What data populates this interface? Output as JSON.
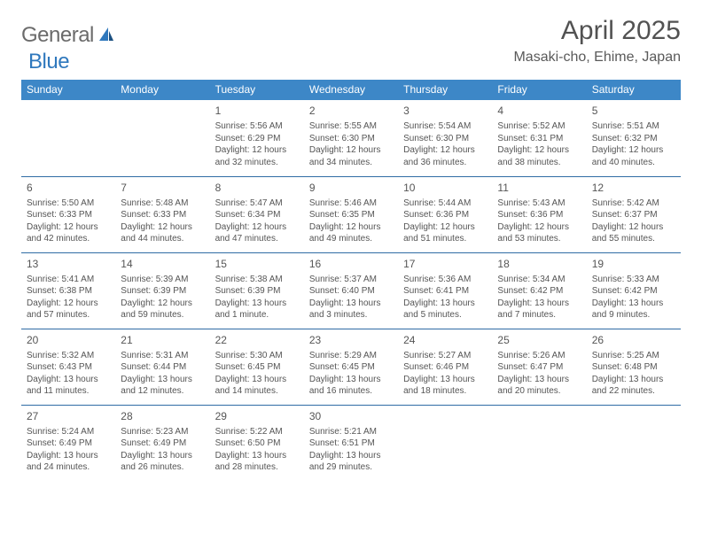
{
  "brand": {
    "word1": "General",
    "word2": "Blue"
  },
  "title": "April 2025",
  "location": "Masaki-cho, Ehime, Japan",
  "header_bg": "#3d87c7",
  "row_border": "#2f6ca5",
  "columns": [
    "Sunday",
    "Monday",
    "Tuesday",
    "Wednesday",
    "Thursday",
    "Friday",
    "Saturday"
  ],
  "weeks": [
    [
      null,
      null,
      {
        "n": "1",
        "sr": "5:56 AM",
        "ss": "6:29 PM",
        "dl": "12 hours and 32 minutes."
      },
      {
        "n": "2",
        "sr": "5:55 AM",
        "ss": "6:30 PM",
        "dl": "12 hours and 34 minutes."
      },
      {
        "n": "3",
        "sr": "5:54 AM",
        "ss": "6:30 PM",
        "dl": "12 hours and 36 minutes."
      },
      {
        "n": "4",
        "sr": "5:52 AM",
        "ss": "6:31 PM",
        "dl": "12 hours and 38 minutes."
      },
      {
        "n": "5",
        "sr": "5:51 AM",
        "ss": "6:32 PM",
        "dl": "12 hours and 40 minutes."
      }
    ],
    [
      {
        "n": "6",
        "sr": "5:50 AM",
        "ss": "6:33 PM",
        "dl": "12 hours and 42 minutes."
      },
      {
        "n": "7",
        "sr": "5:48 AM",
        "ss": "6:33 PM",
        "dl": "12 hours and 44 minutes."
      },
      {
        "n": "8",
        "sr": "5:47 AM",
        "ss": "6:34 PM",
        "dl": "12 hours and 47 minutes."
      },
      {
        "n": "9",
        "sr": "5:46 AM",
        "ss": "6:35 PM",
        "dl": "12 hours and 49 minutes."
      },
      {
        "n": "10",
        "sr": "5:44 AM",
        "ss": "6:36 PM",
        "dl": "12 hours and 51 minutes."
      },
      {
        "n": "11",
        "sr": "5:43 AM",
        "ss": "6:36 PM",
        "dl": "12 hours and 53 minutes."
      },
      {
        "n": "12",
        "sr": "5:42 AM",
        "ss": "6:37 PM",
        "dl": "12 hours and 55 minutes."
      }
    ],
    [
      {
        "n": "13",
        "sr": "5:41 AM",
        "ss": "6:38 PM",
        "dl": "12 hours and 57 minutes."
      },
      {
        "n": "14",
        "sr": "5:39 AM",
        "ss": "6:39 PM",
        "dl": "12 hours and 59 minutes."
      },
      {
        "n": "15",
        "sr": "5:38 AM",
        "ss": "6:39 PM",
        "dl": "13 hours and 1 minute."
      },
      {
        "n": "16",
        "sr": "5:37 AM",
        "ss": "6:40 PM",
        "dl": "13 hours and 3 minutes."
      },
      {
        "n": "17",
        "sr": "5:36 AM",
        "ss": "6:41 PM",
        "dl": "13 hours and 5 minutes."
      },
      {
        "n": "18",
        "sr": "5:34 AM",
        "ss": "6:42 PM",
        "dl": "13 hours and 7 minutes."
      },
      {
        "n": "19",
        "sr": "5:33 AM",
        "ss": "6:42 PM",
        "dl": "13 hours and 9 minutes."
      }
    ],
    [
      {
        "n": "20",
        "sr": "5:32 AM",
        "ss": "6:43 PM",
        "dl": "13 hours and 11 minutes."
      },
      {
        "n": "21",
        "sr": "5:31 AM",
        "ss": "6:44 PM",
        "dl": "13 hours and 12 minutes."
      },
      {
        "n": "22",
        "sr": "5:30 AM",
        "ss": "6:45 PM",
        "dl": "13 hours and 14 minutes."
      },
      {
        "n": "23",
        "sr": "5:29 AM",
        "ss": "6:45 PM",
        "dl": "13 hours and 16 minutes."
      },
      {
        "n": "24",
        "sr": "5:27 AM",
        "ss": "6:46 PM",
        "dl": "13 hours and 18 minutes."
      },
      {
        "n": "25",
        "sr": "5:26 AM",
        "ss": "6:47 PM",
        "dl": "13 hours and 20 minutes."
      },
      {
        "n": "26",
        "sr": "5:25 AM",
        "ss": "6:48 PM",
        "dl": "13 hours and 22 minutes."
      }
    ],
    [
      {
        "n": "27",
        "sr": "5:24 AM",
        "ss": "6:49 PM",
        "dl": "13 hours and 24 minutes."
      },
      {
        "n": "28",
        "sr": "5:23 AM",
        "ss": "6:49 PM",
        "dl": "13 hours and 26 minutes."
      },
      {
        "n": "29",
        "sr": "5:22 AM",
        "ss": "6:50 PM",
        "dl": "13 hours and 28 minutes."
      },
      {
        "n": "30",
        "sr": "5:21 AM",
        "ss": "6:51 PM",
        "dl": "13 hours and 29 minutes."
      },
      null,
      null,
      null
    ]
  ],
  "labels": {
    "sunrise": "Sunrise:",
    "sunset": "Sunset:",
    "daylight": "Daylight:"
  }
}
